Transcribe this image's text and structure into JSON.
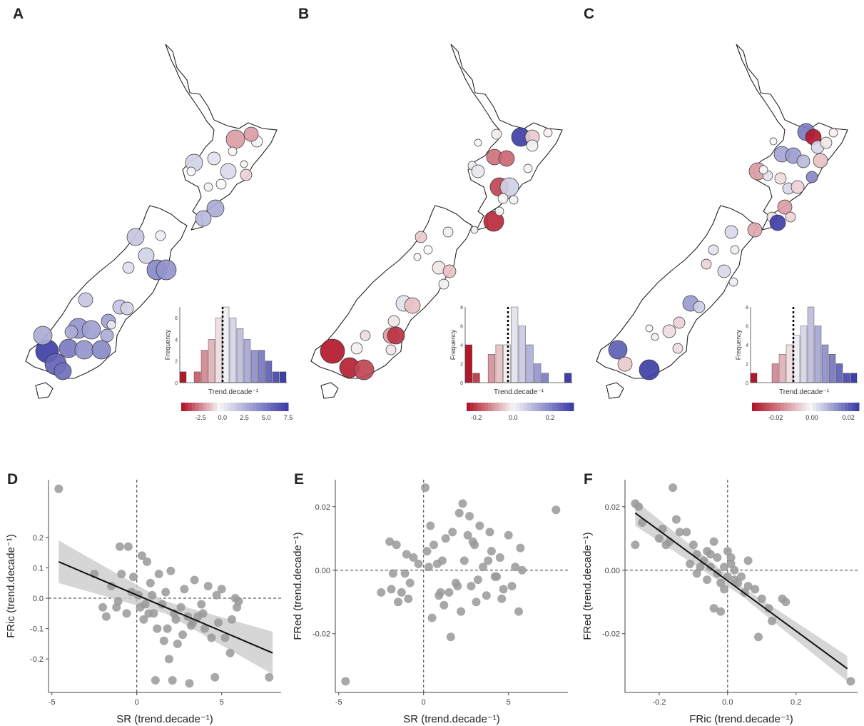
{
  "panel_letters": [
    "A",
    "B",
    "C",
    "D",
    "E",
    "F"
  ],
  "colors": {
    "negative": "#b2182b",
    "neutral": "#f7f7f7",
    "positive": "#3f3fa8",
    "point": "#999999",
    "fit": "#111111",
    "band": "#cccccc"
  },
  "maps": [
    {
      "letter": "A",
      "inset_xlabel": "Trend.decade⁻¹",
      "inset_ylabel": "Frequency",
      "inset_yticks": [
        "0",
        "2",
        "4",
        "6"
      ],
      "colorbar_ticks": [
        "-2.5",
        "0.0",
        "2.5",
        "5.0",
        "7.5"
      ],
      "range": [
        -4.5,
        8
      ]
    },
    {
      "letter": "B",
      "inset_xlabel": "Trend.decade⁻¹",
      "inset_ylabel": "Frequency",
      "inset_yticks": [
        "0",
        "2",
        "4",
        "6",
        "8"
      ],
      "colorbar_ticks": [
        "-0.2",
        "0.0",
        "0.2"
      ],
      "range": [
        -0.28,
        0.36
      ]
    },
    {
      "letter": "C",
      "inset_xlabel": "Trend.decade⁻¹",
      "inset_ylabel": "Frequency",
      "inset_yticks": [
        "0",
        "2",
        "4",
        "6",
        "8"
      ],
      "colorbar_ticks": [
        "-0.02",
        "0.00",
        "0.02"
      ],
      "range": [
        -0.035,
        0.026
      ]
    }
  ],
  "chart_data": [
    {
      "type": "scatter",
      "panel": "D",
      "xlabel": "SR (trend.decade⁻¹)",
      "ylabel": "FRic (trend.decade⁻¹)",
      "xlim": [
        -5.2,
        8.5
      ],
      "ylim": [
        -0.31,
        0.39
      ],
      "xticks": [
        "-5",
        "0",
        "5"
      ],
      "xtick_values": [
        -5,
        0,
        5
      ],
      "yticks": [
        "-0.2",
        "-0.1",
        "0.0",
        "0.1",
        "0.2"
      ],
      "ytick_values": [
        -0.2,
        -0.1,
        0.0,
        0.1,
        0.2
      ],
      "fit": {
        "x": [
          -4.6,
          8.0
        ],
        "y": [
          0.12,
          -0.18
        ]
      },
      "x": [
        -4.6,
        -2.5,
        -2.0,
        -1.8,
        -1.5,
        -1.2,
        -1.0,
        -0.9,
        -0.5,
        -0.3,
        -0.2,
        0.1,
        0.3,
        0.5,
        0.6,
        0.8,
        1.0,
        1.2,
        1.3,
        1.5,
        1.7,
        1.9,
        2.0,
        2.2,
        2.4,
        2.6,
        2.8,
        3.0,
        3.2,
        3.4,
        3.6,
        3.8,
        4.0,
        4.2,
        4.4,
        4.6,
        4.8,
        5.0,
        5.2,
        5.5,
        5.8,
        5.9,
        6.0,
        -1.1,
        -0.6,
        0.4,
        0.9,
        1.6,
        2.1,
        2.7,
        3.3,
        3.9,
        4.7,
        5.6,
        0.2,
        1.1,
        2.3,
        1.8,
        3.1,
        0.7,
        7.8
      ],
      "y": [
        0.36,
        0.08,
        -0.03,
        -0.06,
        0.04,
        -0.03,
        0.17,
        0.08,
        0.17,
        0.02,
        0.07,
        0.01,
        0.14,
        -0.02,
        0.12,
        0.05,
        -0.05,
        -0.1,
        0.08,
        -0.02,
        0.02,
        -0.2,
        0.09,
        -0.05,
        -0.15,
        -0.03,
        0.03,
        -0.06,
        -0.09,
        0.06,
        -0.06,
        -0.02,
        -0.1,
        0.04,
        -0.13,
        -0.26,
        -0.08,
        0.03,
        -0.13,
        -0.18,
        0.0,
        -0.03,
        -0.01,
        -0.01,
        -0.05,
        -0.07,
        0.01,
        -0.14,
        -0.27,
        -0.12,
        -0.08,
        -0.05,
        0.01,
        -0.07,
        -0.03,
        -0.27,
        -0.07,
        -0.1,
        -0.28,
        -0.05,
        -0.26
      ]
    },
    {
      "type": "scatter",
      "panel": "E",
      "xlabel": "SR (trend.decade⁻¹)",
      "ylabel": "FRed (trend.decade⁻¹)",
      "xlim": [
        -5.2,
        8.5
      ],
      "ylim": [
        -0.0385,
        0.0285
      ],
      "xticks": [
        "-5",
        "0",
        "5"
      ],
      "xtick_values": [
        -5,
        0,
        5
      ],
      "yticks": [
        "-0.02",
        "0.00",
        "0.02"
      ],
      "ytick_values": [
        -0.02,
        0.0,
        0.02
      ],
      "x": [
        -4.6,
        -2.5,
        -2.0,
        -1.8,
        -1.6,
        -1.5,
        -1.3,
        -1.1,
        -0.9,
        -0.6,
        -0.3,
        0.1,
        0.3,
        0.4,
        0.6,
        0.8,
        1.0,
        1.2,
        1.3,
        1.5,
        1.7,
        1.9,
        2.1,
        2.2,
        2.4,
        2.6,
        2.8,
        3.0,
        3.2,
        3.3,
        3.5,
        3.7,
        3.8,
        4.0,
        4.2,
        4.5,
        4.7,
        5.0,
        5.2,
        5.6,
        5.7,
        5.8,
        -1.9,
        -0.8,
        0.2,
        0.9,
        1.1,
        2.3,
        2.7,
        3.1,
        3.9,
        4.3,
        5.4,
        -1.0,
        0.5,
        1.6,
        2.0,
        2.9,
        4.6,
        7.8
      ],
      "y": [
        -0.035,
        -0.007,
        0.009,
        -0.001,
        0.008,
        -0.01,
        -0.007,
        -0.001,
        -0.009,
        0.004,
        0.002,
        0.026,
        0.001,
        0.014,
        0.008,
        0.002,
        -0.007,
        -0.011,
        0.01,
        -0.007,
        0.012,
        -0.004,
        0.018,
        -0.013,
        0.003,
        0.011,
        -0.005,
        0.008,
        -0.003,
        0.014,
        0.001,
        -0.008,
        0.003,
        0.006,
        -0.002,
        0.004,
        -0.006,
        0.011,
        -0.005,
        -0.013,
        0.007,
        0.0,
        -0.006,
        -0.004,
        0.006,
        -0.008,
        0.003,
        0.021,
        0.017,
        -0.01,
        0.012,
        -0.002,
        0.001,
        0.005,
        -0.015,
        -0.021,
        -0.005,
        0.009,
        -0.009,
        0.019
      ]
    },
    {
      "type": "scatter",
      "panel": "F",
      "xlabel": "FRic (trend.decade⁻¹)",
      "ylabel": "FRed (trend.decade⁻¹)",
      "xlim": [
        -0.3,
        0.38
      ],
      "ylim": [
        -0.0385,
        0.0285
      ],
      "xticks": [
        "-0.2",
        "0.0",
        "0.2"
      ],
      "xtick_values": [
        -0.2,
        0.0,
        0.2
      ],
      "yticks": [
        "-0.02",
        "0.00",
        "0.02"
      ],
      "ytick_values": [
        -0.02,
        0.0,
        0.02
      ],
      "fit": {
        "x": [
          -0.27,
          0.35
        ],
        "y": [
          0.018,
          -0.031
        ]
      },
      "x": [
        -0.27,
        -0.26,
        -0.25,
        -0.27,
        -0.2,
        -0.18,
        -0.17,
        -0.15,
        -0.14,
        -0.12,
        -0.11,
        -0.1,
        -0.09,
        -0.08,
        -0.07,
        -0.06,
        -0.05,
        -0.04,
        -0.03,
        -0.02,
        -0.01,
        0.0,
        0.01,
        0.02,
        0.03,
        0.04,
        0.06,
        0.08,
        0.1,
        0.12,
        0.16,
        0.17,
        -0.09,
        -0.06,
        -0.04,
        -0.02,
        0.0,
        0.02,
        -0.01,
        0.05,
        0.09,
        0.13,
        0.36,
        -0.19,
        -0.05,
        -0.03,
        0.01,
        -0.16,
        0.06
      ],
      "y": [
        0.021,
        0.02,
        0.015,
        0.008,
        0.01,
        0.008,
        0.009,
        0.016,
        0.012,
        0.012,
        0.002,
        0.008,
        0.005,
        0.001,
        0.003,
        0.006,
        0.001,
        0.009,
        0.004,
        -0.004,
        0.001,
        -0.002,
        0.002,
        -0.003,
        -0.004,
        -0.002,
        -0.005,
        -0.006,
        -0.009,
        -0.012,
        -0.009,
        -0.01,
        -0.001,
        -0.003,
        -0.012,
        -0.013,
        0.006,
        0.0,
        -0.006,
        -0.007,
        -0.021,
        -0.016,
        -0.035,
        0.013,
        0.005,
        -0.001,
        0.004,
        0.026,
        0.003
      ]
    }
  ]
}
